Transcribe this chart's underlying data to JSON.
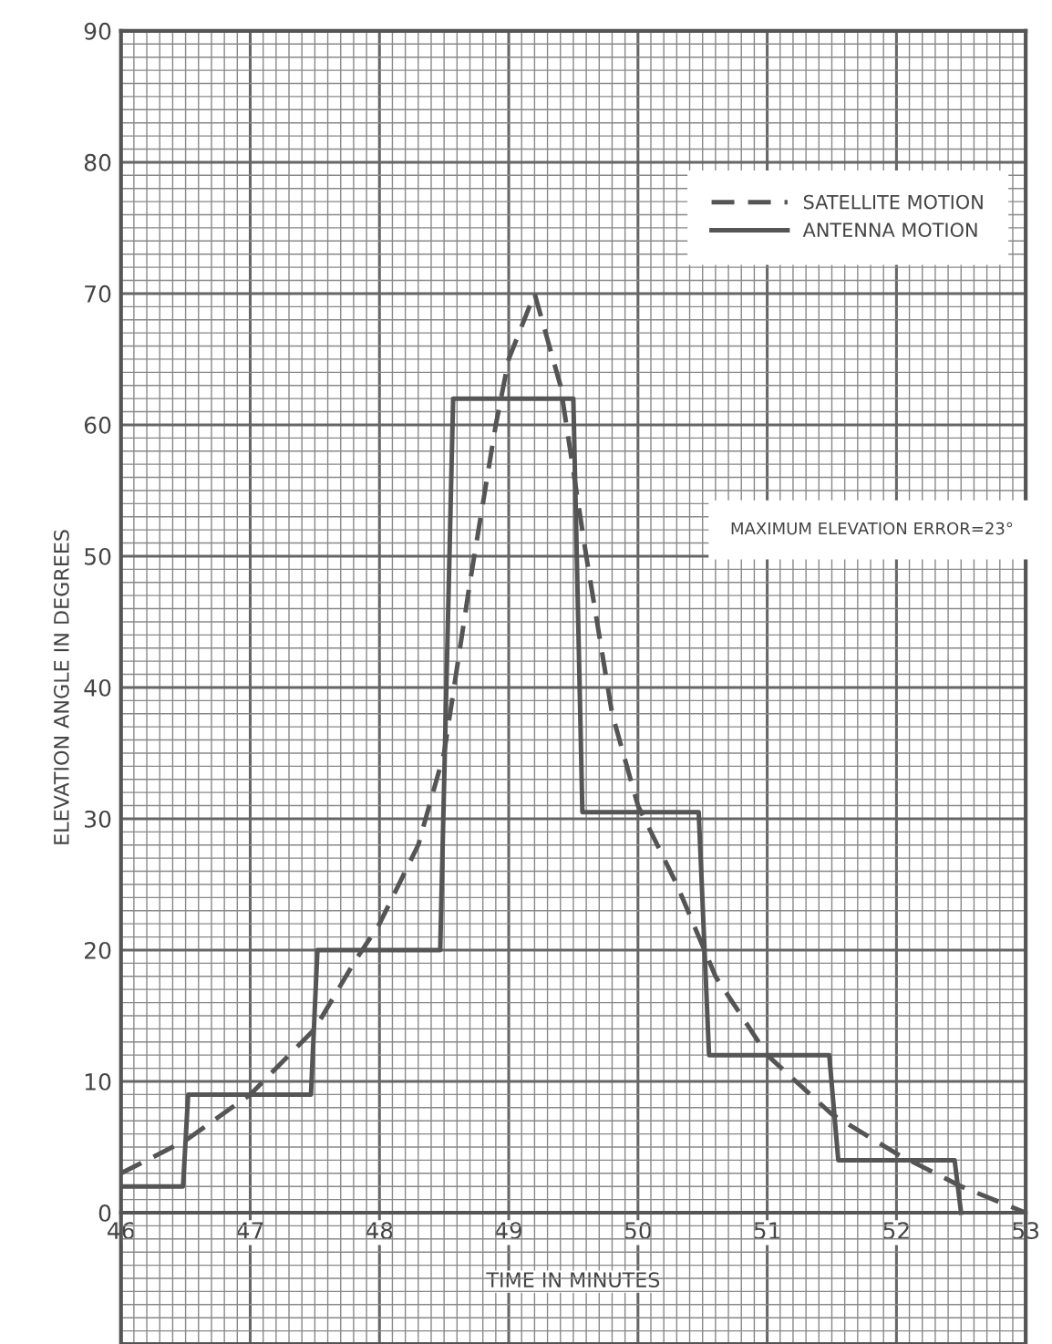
{
  "chart_data": {
    "type": "line",
    "xlabel": "TIME IN MINUTES",
    "ylabel": "ELEVATION ANGLE IN DEGREES",
    "xlim": [
      46,
      53
    ],
    "ylim": [
      -10,
      90
    ],
    "xticks": [
      46,
      47,
      48,
      49,
      50,
      51,
      52,
      53
    ],
    "yticks": [
      0,
      10,
      20,
      30,
      40,
      50,
      60,
      70,
      80,
      90
    ],
    "grid": true,
    "legend": "top right",
    "annotations": [
      "MAXIMUM ELEVATION ERROR=23°"
    ],
    "series": [
      {
        "name": "SATELLITE MOTION",
        "color": "#555555",
        "line_style": "dashed",
        "x": [
          46,
          46.5,
          47,
          47.5,
          47.8,
          48,
          48.3,
          48.5,
          48.7,
          48.9,
          49,
          49.2,
          49.4,
          49.6,
          49.8,
          50,
          50.3,
          50.6,
          51,
          51.5,
          52,
          52.5,
          53
        ],
        "values": [
          3,
          5.5,
          9,
          14,
          19,
          22,
          28,
          35,
          48,
          60,
          65,
          70,
          63,
          50,
          38,
          31,
          25,
          18,
          12,
          7.5,
          4.5,
          2,
          0
        ]
      },
      {
        "name": "ANTENNA MOTION",
        "color": "#555555",
        "line_style": "solid",
        "x": [
          46,
          46.48,
          46.52,
          47.47,
          47.52,
          48.47,
          48.57,
          49.5,
          49.57,
          50.47,
          50.55,
          51.48,
          51.55,
          52.45,
          52.5
        ],
        "values": [
          2,
          2,
          9,
          9,
          20,
          20,
          62,
          62,
          30.5,
          30.5,
          12,
          12,
          4,
          4,
          0
        ]
      }
    ]
  }
}
